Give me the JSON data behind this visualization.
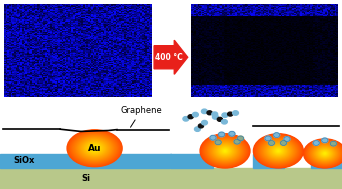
{
  "fig_width": 3.42,
  "fig_height": 1.89,
  "dpi": 100,
  "arrow_text": "400 °C",
  "arrow_color": "#e8201a",
  "arrow_text_color": "white",
  "siox_color": "#4da6d4",
  "si_color": "#b8c88a",
  "label_siox": "SiOx",
  "label_si": "Si",
  "label_au": "Au",
  "label_graphene": "Graphene",
  "co2_dark": "#111111",
  "co2_light": "#7ab8d8",
  "co2_gray": "#8aaa8a",
  "noise_seed": 42
}
